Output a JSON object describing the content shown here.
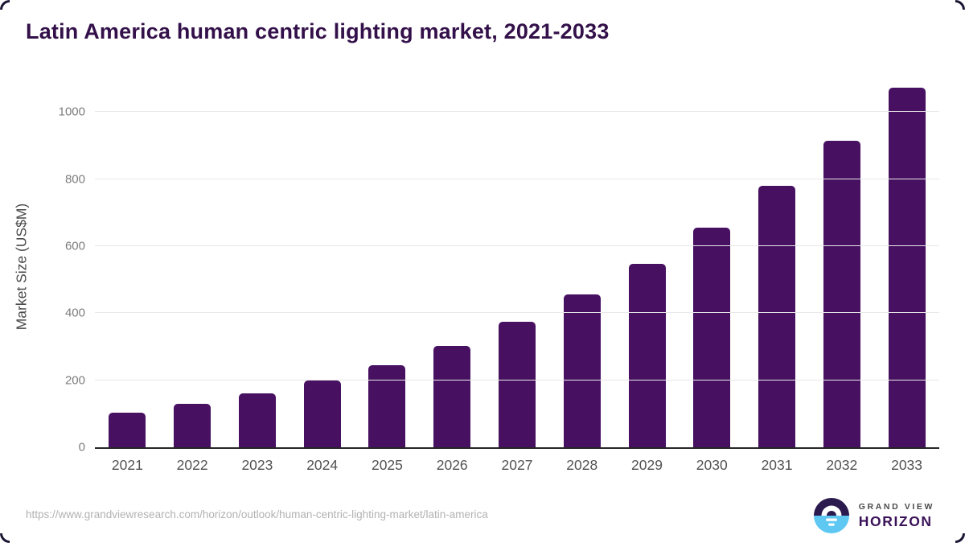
{
  "page": {
    "title": "Latin America human centric lighting market, 2021-2033"
  },
  "chart_data": {
    "type": "bar",
    "title": "Latin America human centric lighting market, 2021-2033",
    "categories": [
      "2021",
      "2022",
      "2023",
      "2024",
      "2025",
      "2026",
      "2027",
      "2028",
      "2029",
      "2030",
      "2031",
      "2032",
      "2033"
    ],
    "values": [
      104,
      129,
      161,
      200,
      245,
      303,
      374,
      455,
      548,
      656,
      780,
      915,
      1072
    ],
    "xlabel": "",
    "ylabel": "Market Size (US$M)",
    "yticks": [
      0,
      200,
      400,
      600,
      800,
      1000
    ],
    "ylim": [
      0,
      1087
    ],
    "grid": true,
    "legend": false,
    "bar_color": "#471061"
  },
  "footer": {
    "source_url": "https://www.grandviewresearch.com/horizon/outlook/human-centric-lighting-market/latin-america",
    "logo": {
      "brand_top": "GRAND VIEW",
      "brand_bottom": "HORIZON",
      "mark_dark_color": "#2b1a4d",
      "mark_blue_color": "#5ec8f2"
    }
  },
  "colors": {
    "title_text": "#331049",
    "bar_fill": "#471061",
    "axis_line": "#262626",
    "gridline": "#e8e8e8",
    "tick_text": "#7c7c7c",
    "x_label_text": "#525252",
    "url_text": "#b2b2b2"
  }
}
